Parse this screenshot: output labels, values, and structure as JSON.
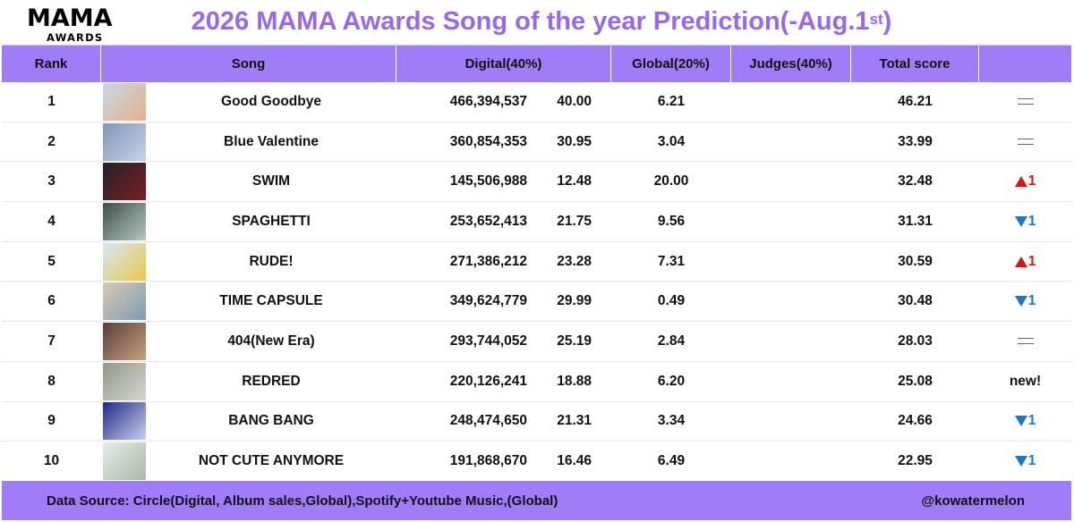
{
  "logo": {
    "main": "MAMA",
    "sub": "AWARDS"
  },
  "title": {
    "main": "2026 MAMA Awards Song of the year Prediction(-Aug.1",
    "sup": "st",
    "close": ")"
  },
  "headers": {
    "rank": "Rank",
    "song": "Song",
    "digital": "Digital(40%)",
    "global": "Global(20%)",
    "judges": "Judges(40%)",
    "total": "Total score",
    "change": ""
  },
  "rows": [
    {
      "rank": "1",
      "song": "Good Goodbye",
      "digital": "466,394,537",
      "digital_pct": "40.00",
      "global": "6.21",
      "judges": "",
      "total": "46.21",
      "change_type": "same",
      "change": ""
    },
    {
      "rank": "2",
      "song": "Blue Valentine",
      "digital": "360,854,353",
      "digital_pct": "30.95",
      "global": "3.04",
      "judges": "",
      "total": "33.99",
      "change_type": "same",
      "change": ""
    },
    {
      "rank": "3",
      "song": "SWIM",
      "digital": "145,506,988",
      "digital_pct": "12.48",
      "global": "20.00",
      "judges": "",
      "total": "32.48",
      "change_type": "up",
      "change": "1"
    },
    {
      "rank": "4",
      "song": "SPAGHETTI",
      "digital": "253,652,413",
      "digital_pct": "21.75",
      "global": "9.56",
      "judges": "",
      "total": "31.31",
      "change_type": "down",
      "change": "1"
    },
    {
      "rank": "5",
      "song": "RUDE!",
      "digital": "271,386,212",
      "digital_pct": "23.28",
      "global": "7.31",
      "judges": "",
      "total": "30.59",
      "change_type": "up",
      "change": "1"
    },
    {
      "rank": "6",
      "song": "TIME CAPSULE",
      "digital": "349,624,779",
      "digital_pct": "29.99",
      "global": "0.49",
      "judges": "",
      "total": "30.48",
      "change_type": "down",
      "change": "1"
    },
    {
      "rank": "7",
      "song": "404(New Era)",
      "digital": "293,744,052",
      "digital_pct": "25.19",
      "global": "2.84",
      "judges": "",
      "total": "28.03",
      "change_type": "same",
      "change": ""
    },
    {
      "rank": "8",
      "song": "REDRED",
      "digital": "220,126,241",
      "digital_pct": "18.88",
      "global": "6.20",
      "judges": "",
      "total": "25.08",
      "change_type": "new",
      "change": "new!"
    },
    {
      "rank": "9",
      "song": "BANG BANG",
      "digital": "248,474,650",
      "digital_pct": "21.31",
      "global": "3.34",
      "judges": "",
      "total": "24.66",
      "change_type": "down",
      "change": "1"
    },
    {
      "rank": "10",
      "song": "NOT CUTE ANYMORE",
      "digital": "191,868,670",
      "digital_pct": "16.46",
      "global": "6.49",
      "judges": "",
      "total": "22.95",
      "change_type": "down",
      "change": "1"
    }
  ],
  "thumb_colors": [
    [
      "#c9d8e4",
      "#e3b08e"
    ],
    [
      "#7f97b8",
      "#c9d3e4"
    ],
    [
      "#222326",
      "#7a1e24"
    ],
    [
      "#3d4f4a",
      "#b5c9c1"
    ],
    [
      "#d7e7f5",
      "#e9c84a"
    ],
    [
      "#d9c9b4",
      "#7d9bb5"
    ],
    [
      "#5a3e3a",
      "#c4a27e"
    ],
    [
      "#8d9a88",
      "#d8d6cf"
    ],
    [
      "#1f2a8a",
      "#c9d0ee"
    ],
    [
      "#e8ece8",
      "#a9b8a8"
    ]
  ],
  "footer": {
    "source": "Data Source: Circle(Digital, Album sales,Global),Spotify+Youtube Music,(Global)",
    "credit": "@kowatermelon"
  },
  "colors": {
    "accent": "#a07cf6",
    "title": "#9966ee",
    "up": "#dd1111",
    "down": "#1a78c8"
  }
}
